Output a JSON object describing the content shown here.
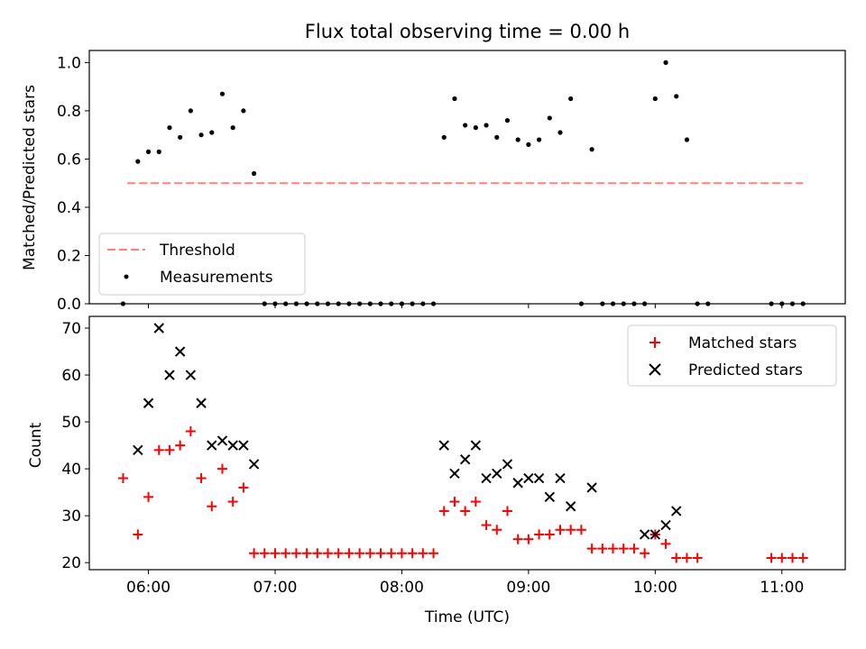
{
  "chart_data": [
    {
      "type": "scatter",
      "title": "Flux total observing time = 0.00 h",
      "xlabel": "",
      "ylabel": "Matched/Predicted stars",
      "ylim": [
        0,
        1.05
      ],
      "yticks": [
        "0.0",
        "0.2",
        "0.4",
        "0.6",
        "0.8",
        "1.0"
      ],
      "xlim": [
        "05:32",
        "11:30"
      ],
      "legend_placement": "lower-left",
      "series": [
        {
          "name": "Threshold",
          "kind": "dashed-line",
          "color": "#ff7f7f",
          "x": [
            "05:50",
            "11:10"
          ],
          "y": [
            0.5,
            0.5
          ]
        },
        {
          "name": "Measurements",
          "kind": "dot",
          "color": "#000000",
          "points": [
            [
              "05:48",
              0.0
            ],
            [
              "05:55",
              0.59
            ],
            [
              "06:00",
              0.63
            ],
            [
              "06:05",
              0.63
            ],
            [
              "06:10",
              0.73
            ],
            [
              "06:15",
              0.69
            ],
            [
              "06:20",
              0.8
            ],
            [
              "06:25",
              0.7
            ],
            [
              "06:30",
              0.71
            ],
            [
              "06:35",
              0.87
            ],
            [
              "06:40",
              0.73
            ],
            [
              "06:45",
              0.8
            ],
            [
              "06:50",
              0.54
            ],
            [
              "06:55",
              0.0
            ],
            [
              "07:00",
              0.0
            ],
            [
              "07:05",
              0.0
            ],
            [
              "07:10",
              0.0
            ],
            [
              "07:15",
              0.0
            ],
            [
              "07:20",
              0.0
            ],
            [
              "07:25",
              0.0
            ],
            [
              "07:30",
              0.0
            ],
            [
              "07:35",
              0.0
            ],
            [
              "07:40",
              0.0
            ],
            [
              "07:45",
              0.0
            ],
            [
              "07:50",
              0.0
            ],
            [
              "07:55",
              0.0
            ],
            [
              "08:00",
              0.0
            ],
            [
              "08:05",
              0.0
            ],
            [
              "08:10",
              0.0
            ],
            [
              "08:15",
              0.0
            ],
            [
              "08:20",
              0.69
            ],
            [
              "08:25",
              0.85
            ],
            [
              "08:30",
              0.74
            ],
            [
              "08:35",
              0.73
            ],
            [
              "08:40",
              0.74
            ],
            [
              "08:45",
              0.69
            ],
            [
              "08:50",
              0.76
            ],
            [
              "08:55",
              0.68
            ],
            [
              "09:00",
              0.66
            ],
            [
              "09:05",
              0.68
            ],
            [
              "09:10",
              0.77
            ],
            [
              "09:15",
              0.71
            ],
            [
              "09:20",
              0.85
            ],
            [
              "09:25",
              0.0
            ],
            [
              "09:30",
              0.64
            ],
            [
              "09:35",
              0.0
            ],
            [
              "09:40",
              0.0
            ],
            [
              "09:45",
              0.0
            ],
            [
              "09:50",
              0.0
            ],
            [
              "09:55",
              0.0
            ],
            [
              "10:00",
              0.85
            ],
            [
              "10:05",
              1.0
            ],
            [
              "10:10",
              0.86
            ],
            [
              "10:15",
              0.68
            ],
            [
              "10:20",
              0.0
            ],
            [
              "10:25",
              0.0
            ],
            [
              "10:55",
              0.0
            ],
            [
              "11:00",
              0.0
            ],
            [
              "11:05",
              0.0
            ],
            [
              "11:10",
              0.0
            ]
          ]
        }
      ]
    },
    {
      "type": "scatter",
      "title": "",
      "xlabel": "Time (UTC)",
      "ylabel": "Count",
      "ylim": [
        18.5,
        72.5
      ],
      "yticks": [
        "20",
        "30",
        "40",
        "50",
        "60",
        "70"
      ],
      "xticks": [
        "06:00",
        "07:00",
        "08:00",
        "09:00",
        "10:00",
        "11:00"
      ],
      "xlim": [
        "05:32",
        "11:30"
      ],
      "legend_placement": "upper-right",
      "series": [
        {
          "name": "Matched stars",
          "marker": "plus",
          "color": "#ff0000",
          "points": [
            [
              "05:48",
              38
            ],
            [
              "05:55",
              26
            ],
            [
              "06:00",
              34
            ],
            [
              "06:05",
              44
            ],
            [
              "06:10",
              44
            ],
            [
              "06:15",
              45
            ],
            [
              "06:20",
              48
            ],
            [
              "06:25",
              38
            ],
            [
              "06:30",
              32
            ],
            [
              "06:35",
              40
            ],
            [
              "06:40",
              33
            ],
            [
              "06:45",
              36
            ],
            [
              "06:50",
              22
            ],
            [
              "06:55",
              22
            ],
            [
              "07:00",
              22
            ],
            [
              "07:05",
              22
            ],
            [
              "07:10",
              22
            ],
            [
              "07:15",
              22
            ],
            [
              "07:20",
              22
            ],
            [
              "07:25",
              22
            ],
            [
              "07:30",
              22
            ],
            [
              "07:35",
              22
            ],
            [
              "07:40",
              22
            ],
            [
              "07:45",
              22
            ],
            [
              "07:50",
              22
            ],
            [
              "07:55",
              22
            ],
            [
              "08:00",
              22
            ],
            [
              "08:05",
              22
            ],
            [
              "08:10",
              22
            ],
            [
              "08:15",
              22
            ],
            [
              "08:20",
              31
            ],
            [
              "08:25",
              33
            ],
            [
              "08:30",
              31
            ],
            [
              "08:35",
              33
            ],
            [
              "08:40",
              28
            ],
            [
              "08:45",
              27
            ],
            [
              "08:50",
              31
            ],
            [
              "08:55",
              25
            ],
            [
              "09:00",
              25
            ],
            [
              "09:05",
              26
            ],
            [
              "09:10",
              26
            ],
            [
              "09:15",
              27
            ],
            [
              "09:20",
              27
            ],
            [
              "09:25",
              27
            ],
            [
              "09:30",
              23
            ],
            [
              "09:35",
              23
            ],
            [
              "09:40",
              23
            ],
            [
              "09:45",
              23
            ],
            [
              "09:50",
              23
            ],
            [
              "09:55",
              22
            ],
            [
              "10:00",
              26
            ],
            [
              "10:05",
              24
            ],
            [
              "10:10",
              21
            ],
            [
              "10:15",
              21
            ],
            [
              "10:20",
              21
            ],
            [
              "10:55",
              21
            ],
            [
              "11:00",
              21
            ],
            [
              "11:05",
              21
            ],
            [
              "11:10",
              21
            ]
          ]
        },
        {
          "name": "Predicted stars",
          "marker": "x",
          "color": "#000000",
          "points": [
            [
              "05:55",
              44
            ],
            [
              "06:00",
              54
            ],
            [
              "06:05",
              70
            ],
            [
              "06:10",
              60
            ],
            [
              "06:15",
              65
            ],
            [
              "06:20",
              60
            ],
            [
              "06:25",
              54
            ],
            [
              "06:30",
              45
            ],
            [
              "06:35",
              46
            ],
            [
              "06:40",
              45
            ],
            [
              "06:45",
              45
            ],
            [
              "06:50",
              41
            ],
            [
              "08:20",
              45
            ],
            [
              "08:25",
              39
            ],
            [
              "08:30",
              42
            ],
            [
              "08:35",
              45
            ],
            [
              "08:40",
              38
            ],
            [
              "08:45",
              39
            ],
            [
              "08:50",
              41
            ],
            [
              "08:55",
              37
            ],
            [
              "09:00",
              38
            ],
            [
              "09:05",
              38
            ],
            [
              "09:10",
              34
            ],
            [
              "09:15",
              38
            ],
            [
              "09:20",
              32
            ],
            [
              "09:30",
              36
            ],
            [
              "09:55",
              26
            ],
            [
              "10:00",
              26
            ],
            [
              "10:05",
              28
            ],
            [
              "10:10",
              31
            ]
          ]
        }
      ]
    }
  ]
}
